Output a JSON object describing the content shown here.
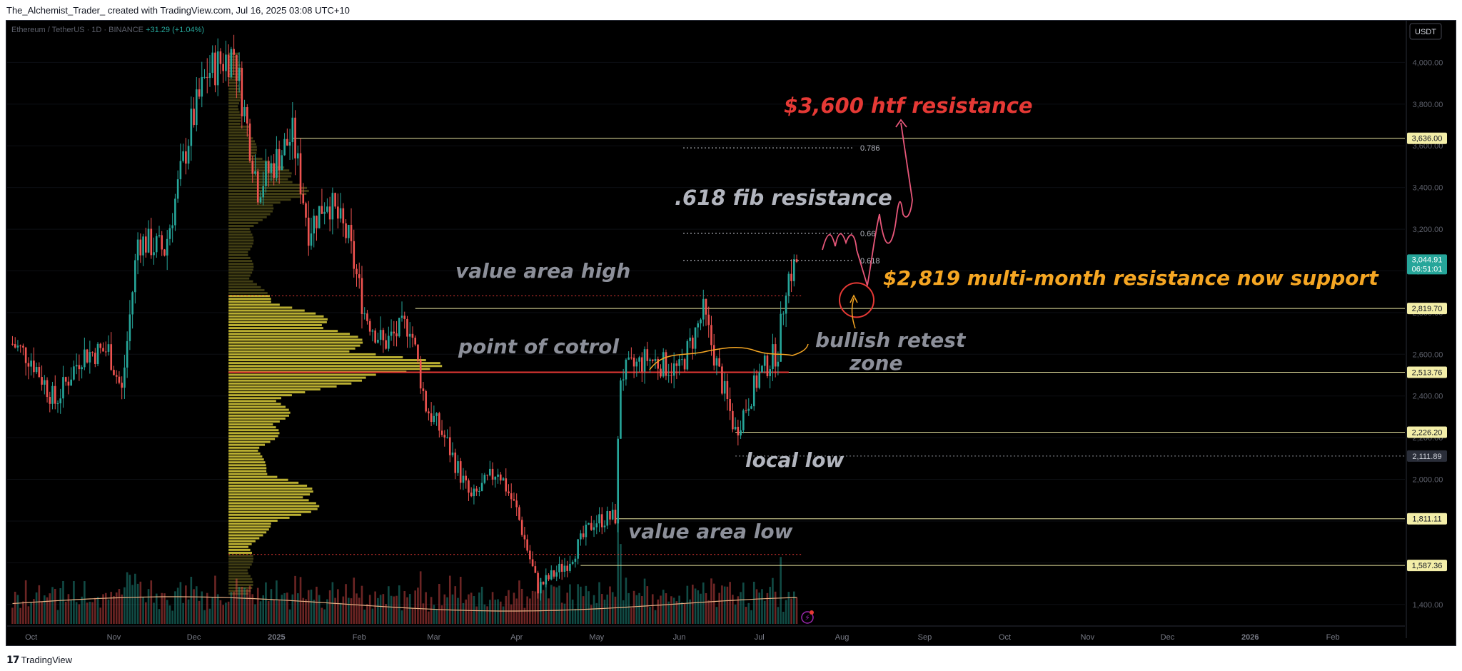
{
  "header": {
    "text": "The_Alchemist_Trader_ created with TradingView.com, Jul 16, 2025 03:08 UTC+10"
  },
  "footer": {
    "brand": "TradingView",
    "logo_glyph": "17"
  },
  "symbol_bar": {
    "symbol": "Ethereum / TetherUS · 1D · BINANCE",
    "change": "+31.29 (+1.04%)"
  },
  "currency_button": "USDT",
  "colors": {
    "background": "#000000",
    "up_candle": "#26a69a",
    "down_candle": "#ef5350",
    "volume_profile": "#d9cc3a",
    "level_line": "#e8e4a0",
    "poc_line": "#e53935",
    "htf_text": "#e53935",
    "support_text": "#f5a623",
    "grey_text": "#b2b5be"
  },
  "chart_data": {
    "type": "candlestick",
    "symbol": "Ethereum / TetherUS",
    "timeframe": "1D",
    "exchange": "BINANCE",
    "last_price": 3044.91,
    "countdown": "06:51:01",
    "ylim": [
      1300,
      4200
    ],
    "y_ticks": [
      1400,
      1600,
      1800,
      2000,
      2200,
      2400,
      2600,
      2800,
      3000,
      3200,
      3400,
      3600,
      3800,
      4000
    ],
    "x_ticks": [
      "Oct",
      "Nov",
      "Dec",
      "2025",
      "Feb",
      "Mar",
      "Apr",
      "May",
      "Jun",
      "Jul",
      "Aug",
      "Sep",
      "Oct",
      "Nov",
      "Dec",
      "2026",
      "Feb"
    ],
    "price_path": [
      {
        "date": "2024-09-24",
        "close": 2650
      },
      {
        "date": "2024-10-01",
        "close": 2580
      },
      {
        "date": "2024-10-10",
        "close": 2370
      },
      {
        "date": "2024-10-20",
        "close": 2600
      },
      {
        "date": "2024-10-30",
        "close": 2620
      },
      {
        "date": "2024-11-04",
        "close": 2420
      },
      {
        "date": "2024-11-10",
        "close": 3150
      },
      {
        "date": "2024-11-20",
        "close": 3100
      },
      {
        "date": "2024-11-30",
        "close": 3700
      },
      {
        "date": "2024-12-06",
        "close": 3950
      },
      {
        "date": "2024-12-16",
        "close": 4050
      },
      {
        "date": "2024-12-25",
        "close": 3400
      },
      {
        "date": "2025-01-07",
        "close": 3650
      },
      {
        "date": "2025-01-13",
        "close": 3200
      },
      {
        "date": "2025-01-20",
        "close": 3350
      },
      {
        "date": "2025-01-28",
        "close": 3150
      },
      {
        "date": "2025-02-03",
        "close": 2800
      },
      {
        "date": "2025-02-10",
        "close": 2650
      },
      {
        "date": "2025-02-20",
        "close": 2750
      },
      {
        "date": "2025-02-26",
        "close": 2350
      },
      {
        "date": "2025-03-05",
        "close": 2200
      },
      {
        "date": "2025-03-15",
        "close": 1900
      },
      {
        "date": "2025-03-25",
        "close": 2050
      },
      {
        "date": "2025-04-01",
        "close": 1850
      },
      {
        "date": "2025-04-09",
        "close": 1480
      },
      {
        "date": "2025-04-20",
        "close": 1600
      },
      {
        "date": "2025-04-30",
        "close": 1800
      },
      {
        "date": "2025-05-08",
        "close": 1820
      },
      {
        "date": "2025-05-10",
        "close": 2500
      },
      {
        "date": "2025-05-20",
        "close": 2580
      },
      {
        "date": "2025-06-01",
        "close": 2520
      },
      {
        "date": "2025-06-10",
        "close": 2800
      },
      {
        "date": "2025-06-15",
        "close": 2550
      },
      {
        "date": "2025-06-22",
        "close": 2230
      },
      {
        "date": "2025-07-01",
        "close": 2500
      },
      {
        "date": "2025-07-08",
        "close": 2620
      },
      {
        "date": "2025-07-11",
        "close": 2950
      },
      {
        "date": "2025-07-15",
        "close": 3044.91
      }
    ],
    "price_labels": [
      {
        "label": "3,636.00",
        "value": 3636
      },
      {
        "label": "3,044.91",
        "value": 3044.91
      },
      {
        "label": "2,819.70",
        "value": 2819.7
      },
      {
        "label": "2,513.76",
        "value": 2513.76
      },
      {
        "label": "2,226.20",
        "value": 2226.2
      },
      {
        "label": "2,111.89",
        "value": 2111.89
      },
      {
        "label": "1,811.11",
        "value": 1811.11
      },
      {
        "label": "1,587.36",
        "value": 1587.36
      }
    ],
    "horizontal_levels": [
      {
        "value": 3636,
        "from": "2025-01-07"
      },
      {
        "value": 2819.7,
        "from": "2025-02-22"
      },
      {
        "value": 2513.76,
        "from": "2024-12-14"
      },
      {
        "value": 2226.2,
        "from": "2025-06-22"
      },
      {
        "value": 1811.11,
        "from": "2025-05-08"
      },
      {
        "value": 1587.36,
        "from": "2025-04-25"
      }
    ],
    "dotted_levels": [
      {
        "value": 2880,
        "from": "2024-12-14",
        "to": "2025-07-17"
      },
      {
        "value": 1640,
        "from": "2024-12-14",
        "to": "2025-07-17"
      },
      {
        "value": 2111.89,
        "from": "2025-06-22",
        "to": "2026-02-28"
      }
    ],
    "fib_levels": [
      {
        "label": "0.786",
        "value": 3590
      },
      {
        "label": "0.66",
        "value": 3180
      },
      {
        "label": "0.618",
        "value": 3050
      }
    ],
    "annotations": {
      "htf_resistance": "$3,600 htf resistance",
      "fib_resistance": ".618 fib resistance",
      "value_area_high": "value area high",
      "support": "$2,819 multi-month resistance now support",
      "poc": "point of cotrol",
      "bullish_retest": "bullish retest",
      "bullish_retest_2": "zone",
      "local_low": "local low",
      "value_area_low": "value area low"
    }
  }
}
